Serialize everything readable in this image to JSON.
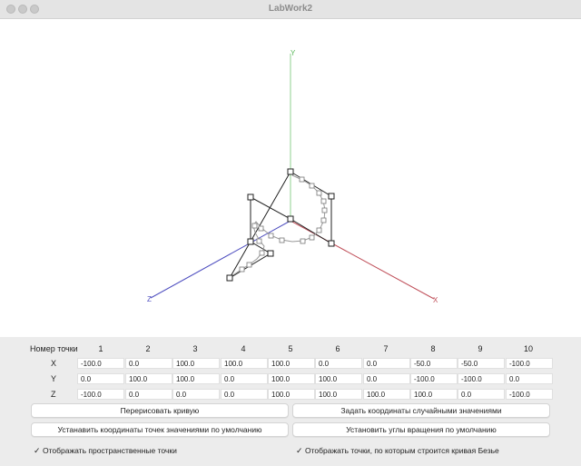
{
  "window": {
    "title": "LabWork2"
  },
  "axes": {
    "x_label": "X",
    "y_label": "Y",
    "z_label": "Z",
    "x_color": "#c0505a",
    "y_color": "#8fd08f",
    "z_color": "#5050c0"
  },
  "table": {
    "header_label": "Номер точки",
    "columns": [
      "1",
      "2",
      "3",
      "4",
      "5",
      "6",
      "7",
      "8",
      "9",
      "10"
    ],
    "rows": [
      {
        "label": "X",
        "values": [
          "-100.0",
          "0.0",
          "100.0",
          "100.0",
          "100.0",
          "0.0",
          "0.0",
          "-50.0",
          "-50.0",
          "-100.0"
        ]
      },
      {
        "label": "Y",
        "values": [
          "0.0",
          "100.0",
          "100.0",
          "0.0",
          "100.0",
          "100.0",
          "0.0",
          "-100.0",
          "-100.0",
          "0.0"
        ]
      },
      {
        "label": "Z",
        "values": [
          "-100.0",
          "0.0",
          "0.0",
          "0.0",
          "100.0",
          "100.0",
          "100.0",
          "100.0",
          "0.0",
          "-100.0"
        ]
      }
    ]
  },
  "buttons": {
    "redraw": "Перерисовать кривую",
    "random": "Задать координаты случайными значениями",
    "defaults": "Устанавить координаты точек значениями по умолчанию",
    "rotation_defaults": "Установить углы вращения по умолчанию"
  },
  "checkboxes": {
    "spatial_points": {
      "label": "Отображать пространственные точки",
      "checked": true
    },
    "bezier_points": {
      "label": "Отображать точки, по которым строится кривая Безье",
      "checked": true
    }
  }
}
